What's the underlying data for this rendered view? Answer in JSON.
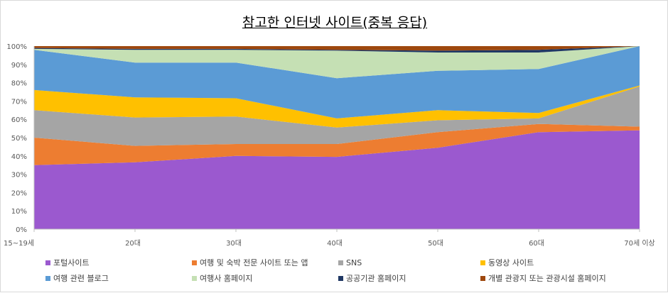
{
  "chart_data": {
    "type": "area",
    "stacked": true,
    "percent_stacked": true,
    "title": "참고한 인터넷 사이트(중복 응답)",
    "xlabel": "",
    "ylabel": "",
    "categories": [
      "15~19세",
      "20대",
      "30대",
      "40대",
      "50대",
      "60대",
      "70세 이상"
    ],
    "y_ticks": [
      "0%",
      "10%",
      "20%",
      "30%",
      "40%",
      "50%",
      "60%",
      "70%",
      "80%",
      "90%",
      "100%"
    ],
    "ylim": [
      0,
      100
    ],
    "grid": false,
    "legend_position": "bottom",
    "series": [
      {
        "name": "포털사이트",
        "color": "#9b59cf",
        "values": [
          35.0,
          36.5,
          40.0,
          39.5,
          44.5,
          53.0,
          54.0
        ]
      },
      {
        "name": "여행 및 숙박 전문 사이트 또는 앱",
        "color": "#ed7d31",
        "values": [
          15.0,
          9.0,
          6.5,
          7.0,
          8.5,
          4.5,
          2.0
        ]
      },
      {
        "name": "SNS",
        "color": "#a5a5a5",
        "values": [
          15.0,
          15.5,
          15.0,
          9.0,
          6.5,
          3.0,
          22.0
        ]
      },
      {
        "name": "동영상 사이트",
        "color": "#ffc000",
        "values": [
          11.0,
          11.0,
          10.0,
          5.0,
          5.5,
          3.0,
          0.5
        ]
      },
      {
        "name": "여행 관련 블로그",
        "color": "#5b9bd5",
        "values": [
          22.0,
          19.0,
          19.5,
          22.0,
          21.5,
          24.0,
          21.5
        ]
      },
      {
        "name": "여행사 홈페이지",
        "color": "#c5e0b4",
        "values": [
          0.5,
          7.0,
          7.0,
          15.0,
          10.0,
          9.0,
          0.0
        ]
      },
      {
        "name": "공공기관 홈페이지",
        "color": "#203864",
        "values": [
          0.5,
          0.5,
          0.5,
          0.5,
          1.0,
          1.5,
          0.0
        ]
      },
      {
        "name": "개별 관광지 또는 관광시설 홈페이지",
        "color": "#9e480e",
        "values": [
          1.0,
          1.5,
          1.5,
          2.0,
          2.5,
          2.0,
          0.0
        ]
      }
    ]
  }
}
